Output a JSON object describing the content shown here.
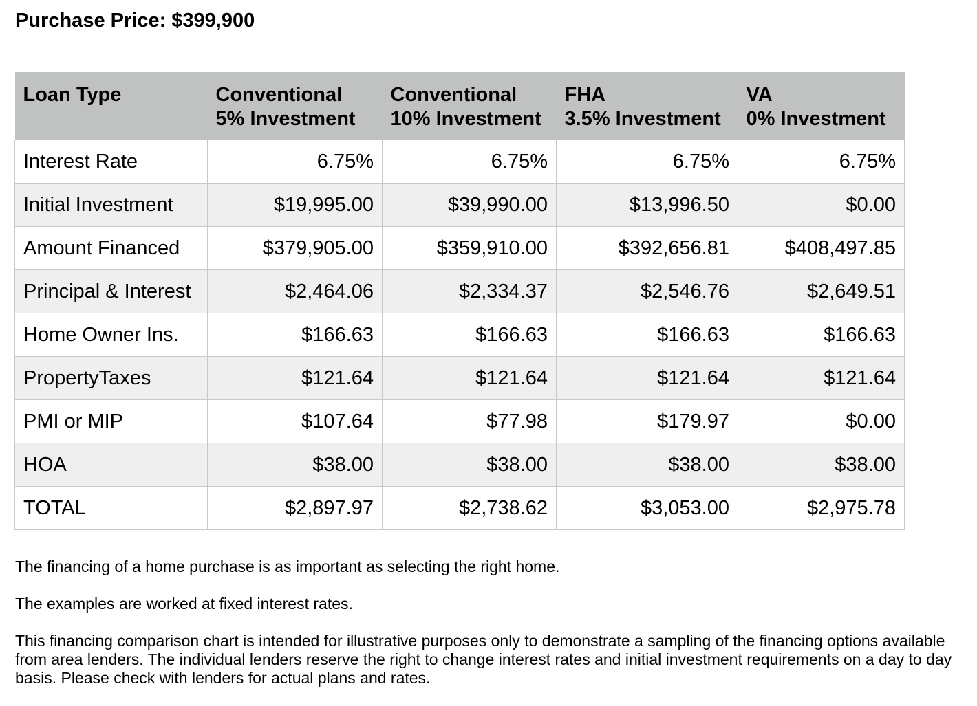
{
  "title": "Purchase Price: $399,900",
  "table": {
    "header": {
      "label": "Loan Type",
      "columns": [
        {
          "line1": "Conventional",
          "line2": "5% Investment"
        },
        {
          "line1": "Conventional",
          "line2": "10% Investment"
        },
        {
          "line1": "FHA",
          "line2": "3.5% Investment"
        },
        {
          "line1": "VA",
          "line2": "0% Investment"
        }
      ]
    },
    "rows": [
      {
        "label": "Interest Rate",
        "values": [
          "6.75%",
          "6.75%",
          "6.75%",
          "6.75%"
        ]
      },
      {
        "label": "Initial Investment",
        "values": [
          "$19,995.00",
          "$39,990.00",
          "$13,996.50",
          "$0.00"
        ]
      },
      {
        "label": "Amount Financed",
        "values": [
          "$379,905.00",
          "$359,910.00",
          "$392,656.81",
          "$408,497.85"
        ]
      },
      {
        "label": "Principal & Interest",
        "values": [
          "$2,464.06",
          "$2,334.37",
          "$2,546.76",
          "$2,649.51"
        ]
      },
      {
        "label": "Home Owner Ins.",
        "values": [
          "$166.63",
          "$166.63",
          "$166.63",
          "$166.63"
        ]
      },
      {
        "label": "PropertyTaxes",
        "values": [
          "$121.64",
          "$121.64",
          "$121.64",
          "$121.64"
        ]
      },
      {
        "label": "PMI or MIP",
        "values": [
          "$107.64",
          "$77.98",
          "$179.97",
          "$0.00"
        ]
      },
      {
        "label": "HOA",
        "values": [
          "$38.00",
          "$38.00",
          "$38.00",
          "$38.00"
        ]
      },
      {
        "label": "TOTAL",
        "values": [
          "$2,897.97",
          "$2,738.62",
          "$3,053.00",
          "$2,975.78"
        ]
      }
    ]
  },
  "notes": [
    "The financing of a home purchase is as important as selecting the right home.",
    "The examples are worked at fixed interest rates.",
    "This financing comparison chart is intended for illustrative purposes only to demonstrate a sampling of the financing options available from area lenders. The individual lenders reserve the right to change interest rates and initial investment requirements on a day to day basis. Please check with lenders for actual plans and rates."
  ]
}
